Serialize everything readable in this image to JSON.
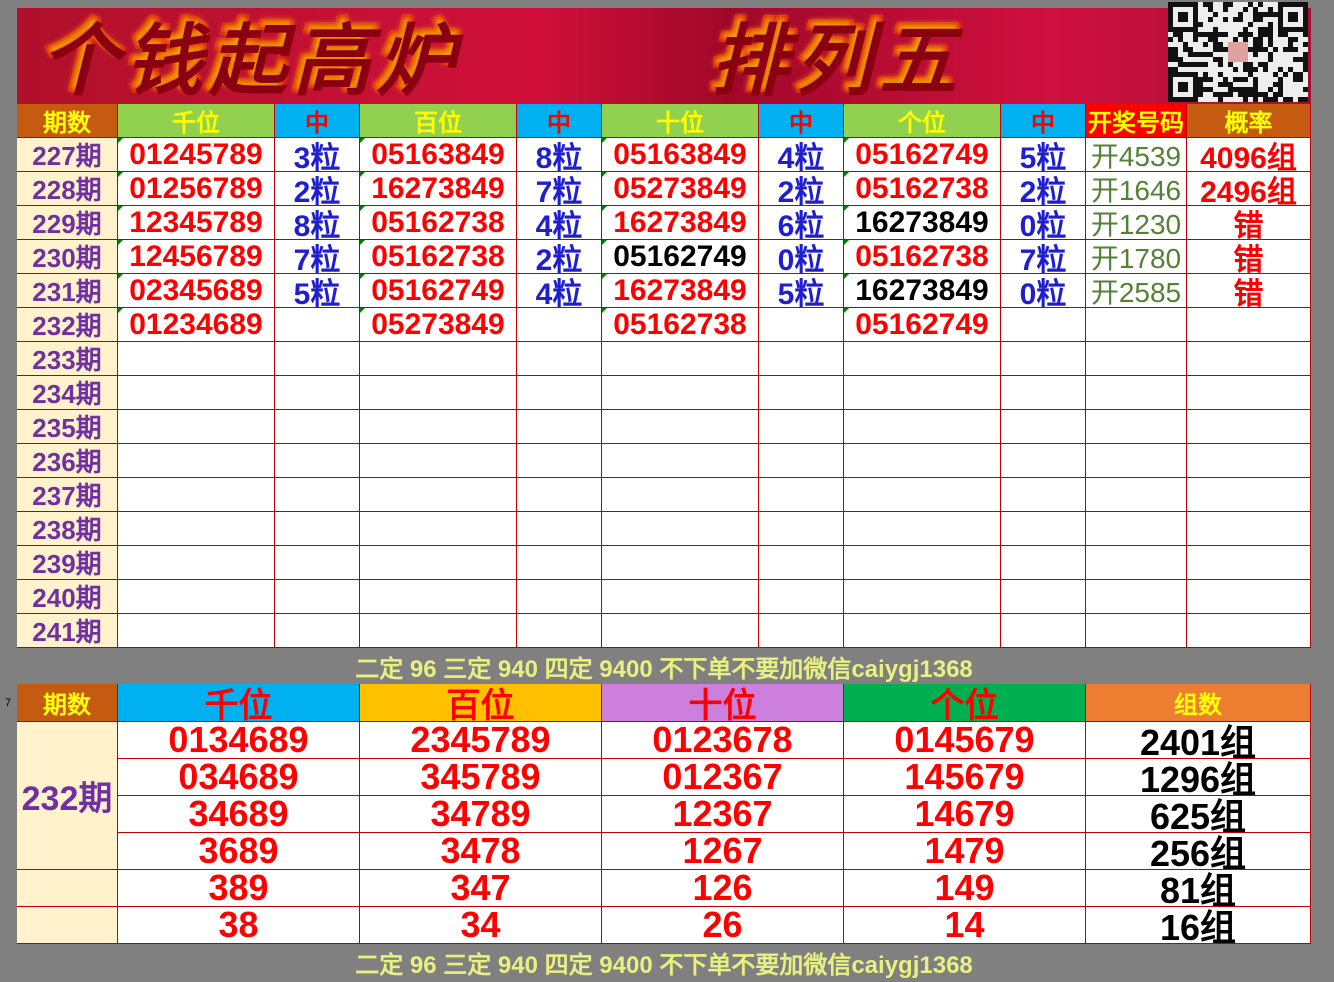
{
  "banner": {
    "left": "个钱起高炉",
    "right": "排列五",
    "qr": "qr-code"
  },
  "colors": {
    "header_orange": "#c55a11",
    "header_green": "#92d050",
    "header_blue": "#00b0f0",
    "header_red": "#ff0000",
    "period_bg": "#fff2cc",
    "period_text": "#7030a0",
    "value_red": "#ff0000",
    "hit_blue": "#1f1fcf",
    "draw_green": "#548235",
    "b_qian": "#00b0f0",
    "b_bai": "#ffc000",
    "b_shi": "#cc7fdd",
    "b_ge": "#00b050",
    "b_zu": "#ed7d31"
  },
  "top": {
    "headers": [
      "期数",
      "千位",
      "中",
      "百位",
      "中",
      "十位",
      "中",
      "个位",
      "中",
      "开奖号码",
      "概率"
    ],
    "rows": [
      {
        "period": "227期",
        "cells": [
          {
            "v": "01245789",
            "c": "red"
          },
          {
            "v": "3粒"
          },
          {
            "v": "05163849",
            "c": "red"
          },
          {
            "v": "8粒"
          },
          {
            "v": "05163849",
            "c": "red"
          },
          {
            "v": "4粒"
          },
          {
            "v": "05162749",
            "c": "red"
          },
          {
            "v": "5粒"
          }
        ],
        "draw": "开4539",
        "prob": "4096组"
      },
      {
        "period": "228期",
        "cells": [
          {
            "v": "01256789",
            "c": "red"
          },
          {
            "v": "2粒"
          },
          {
            "v": "16273849",
            "c": "red"
          },
          {
            "v": "7粒"
          },
          {
            "v": "05273849",
            "c": "red"
          },
          {
            "v": "2粒"
          },
          {
            "v": "05162738",
            "c": "red"
          },
          {
            "v": "2粒"
          }
        ],
        "draw": "开1646",
        "prob": "2496组"
      },
      {
        "period": "229期",
        "cells": [
          {
            "v": "12345789",
            "c": "red"
          },
          {
            "v": "8粒"
          },
          {
            "v": "05162738",
            "c": "red"
          },
          {
            "v": "4粒"
          },
          {
            "v": "16273849",
            "c": "red"
          },
          {
            "v": "6粒"
          },
          {
            "v": "16273849",
            "c": "black"
          },
          {
            "v": "0粒"
          }
        ],
        "draw": "开1230",
        "prob": "错"
      },
      {
        "period": "230期",
        "cells": [
          {
            "v": "12456789",
            "c": "red"
          },
          {
            "v": "7粒"
          },
          {
            "v": "05162738",
            "c": "red"
          },
          {
            "v": "2粒"
          },
          {
            "v": "05162749",
            "c": "black"
          },
          {
            "v": "0粒"
          },
          {
            "v": "05162738",
            "c": "red"
          },
          {
            "v": "7粒"
          }
        ],
        "draw": "开1780",
        "prob": "错"
      },
      {
        "period": "231期",
        "cells": [
          {
            "v": "02345689",
            "c": "red"
          },
          {
            "v": "5粒"
          },
          {
            "v": "05162749",
            "c": "red"
          },
          {
            "v": "4粒"
          },
          {
            "v": "16273849",
            "c": "red"
          },
          {
            "v": "5粒"
          },
          {
            "v": "16273849",
            "c": "black"
          },
          {
            "v": "0粒"
          }
        ],
        "draw": "开2585",
        "prob": "错"
      },
      {
        "period": "232期",
        "cells": [
          {
            "v": "01234689",
            "c": "red"
          },
          {
            "v": ""
          },
          {
            "v": "05273849",
            "c": "red"
          },
          {
            "v": ""
          },
          {
            "v": "05162738",
            "c": "red"
          },
          {
            "v": ""
          },
          {
            "v": "05162749",
            "c": "red"
          },
          {
            "v": ""
          }
        ],
        "draw": "",
        "prob": ""
      },
      {
        "period": "233期"
      },
      {
        "period": "234期"
      },
      {
        "period": "235期"
      },
      {
        "period": "236期"
      },
      {
        "period": "237期"
      },
      {
        "period": "238期"
      },
      {
        "period": "239期"
      },
      {
        "period": "240期"
      },
      {
        "period": "241期"
      }
    ]
  },
  "note": "二定 96 三定 940 四定 9400 不下单不要加微信caiygj1368",
  "row_marker": "7",
  "bottom": {
    "headers": [
      "期数",
      "千位",
      "百位",
      "十位",
      "个位",
      "组数"
    ],
    "period": "232期",
    "rows": [
      [
        "0134689",
        "2345789",
        "0123678",
        "0145679",
        "2401组"
      ],
      [
        "034689",
        "345789",
        "012367",
        "145679",
        "1296组"
      ],
      [
        "34689",
        "34789",
        "12367",
        "14679",
        "625组"
      ],
      [
        "3689",
        "3478",
        "1267",
        "1479",
        "256组"
      ],
      [
        "389",
        "347",
        "126",
        "149",
        "81组"
      ],
      [
        "38",
        "34",
        "26",
        "14",
        "16组"
      ]
    ]
  }
}
